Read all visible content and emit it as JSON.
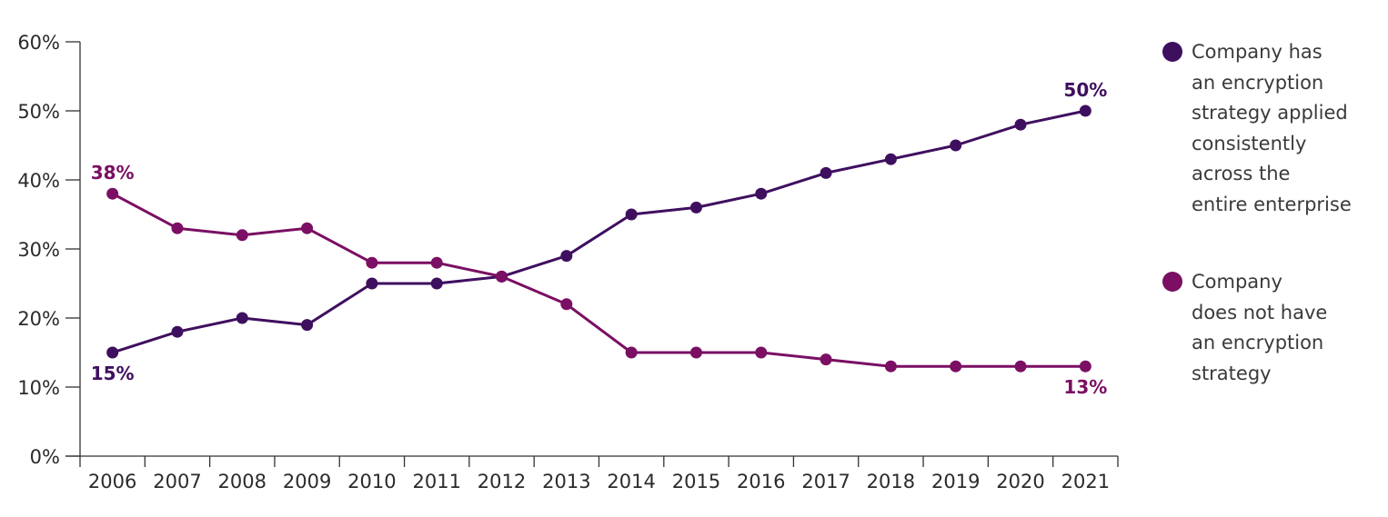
{
  "chart_data": {
    "type": "line",
    "title": "",
    "xlabel": "",
    "ylabel": "",
    "ylim": [
      0,
      60
    ],
    "y_ticks": [
      "0%",
      "10%",
      "20%",
      "30%",
      "40%",
      "50%",
      "60%"
    ],
    "y_tick_values": [
      0,
      10,
      20,
      30,
      40,
      50,
      60
    ],
    "categories": [
      "2006",
      "2007",
      "2008",
      "2009",
      "2010",
      "2011",
      "2012",
      "2013",
      "2014",
      "2015",
      "2016",
      "2017",
      "2018",
      "2019",
      "2020",
      "2021"
    ],
    "grid": false,
    "legend_position": "right",
    "series": [
      {
        "name": "Company has an encryption strategy applied consistently across the entire enterprise",
        "legend_lines": [
          "Company has",
          "an encryption",
          "strategy applied",
          "consistently",
          "across the",
          "entire enterprise"
        ],
        "color": "#3f0f5f",
        "values": [
          15,
          18,
          20,
          19,
          25,
          25,
          26,
          29,
          35,
          36,
          38,
          41,
          43,
          45,
          48,
          50
        ],
        "annotations": [
          {
            "index": 0,
            "text": "15%",
            "placement": "below"
          },
          {
            "index": 15,
            "text": "50%",
            "placement": "above"
          }
        ]
      },
      {
        "name": "Company does not have an encryption strategy",
        "legend_lines": [
          "Company",
          "does not have",
          "an encryption",
          "strategy"
        ],
        "color": "#7a0f63",
        "values": [
          38,
          33,
          32,
          33,
          28,
          28,
          26,
          22,
          15,
          15,
          15,
          14,
          13,
          13,
          13,
          13
        ],
        "annotations": [
          {
            "index": 0,
            "text": "38%",
            "placement": "above"
          },
          {
            "index": 15,
            "text": "13%",
            "placement": "below"
          }
        ]
      }
    ]
  }
}
